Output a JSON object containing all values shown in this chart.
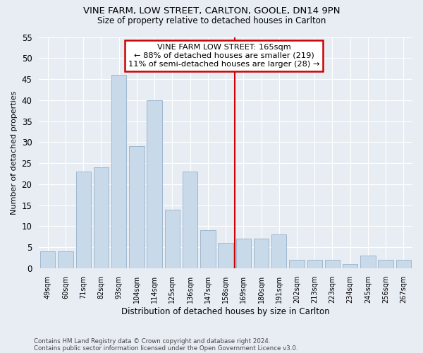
{
  "title_line1": "VINE FARM, LOW STREET, CARLTON, GOOLE, DN14 9PN",
  "title_line2": "Size of property relative to detached houses in Carlton",
  "xlabel": "Distribution of detached houses by size in Carlton",
  "ylabel": "Number of detached properties",
  "categories": [
    "49sqm",
    "60sqm",
    "71sqm",
    "82sqm",
    "93sqm",
    "104sqm",
    "114sqm",
    "125sqm",
    "136sqm",
    "147sqm",
    "158sqm",
    "169sqm",
    "180sqm",
    "191sqm",
    "202sqm",
    "213sqm",
    "223sqm",
    "234sqm",
    "245sqm",
    "256sqm",
    "267sqm"
  ],
  "values": [
    4,
    4,
    23,
    24,
    46,
    29,
    40,
    14,
    23,
    9,
    6,
    7,
    7,
    8,
    2,
    2,
    2,
    1,
    3,
    2,
    2
  ],
  "bar_color": "#c8d9ea",
  "bar_edge_color": "#a0b8d0",
  "background_color": "#e8edf4",
  "grid_color": "#d0d8e4",
  "annotation_text": "VINE FARM LOW STREET: 165sqm\n← 88% of detached houses are smaller (219)\n11% of semi-detached houses are larger (28) →",
  "annotation_box_facecolor": "#ffffff",
  "annotation_box_edgecolor": "#cc0000",
  "vline_color": "#cc0000",
  "vline_position": 10.5,
  "ylim": [
    0,
    55
  ],
  "yticks": [
    0,
    5,
    10,
    15,
    20,
    25,
    30,
    35,
    40,
    45,
    50,
    55
  ],
  "footnote1": "Contains HM Land Registry data © Crown copyright and database right 2024.",
  "footnote2": "Contains public sector information licensed under the Open Government Licence v3.0."
}
